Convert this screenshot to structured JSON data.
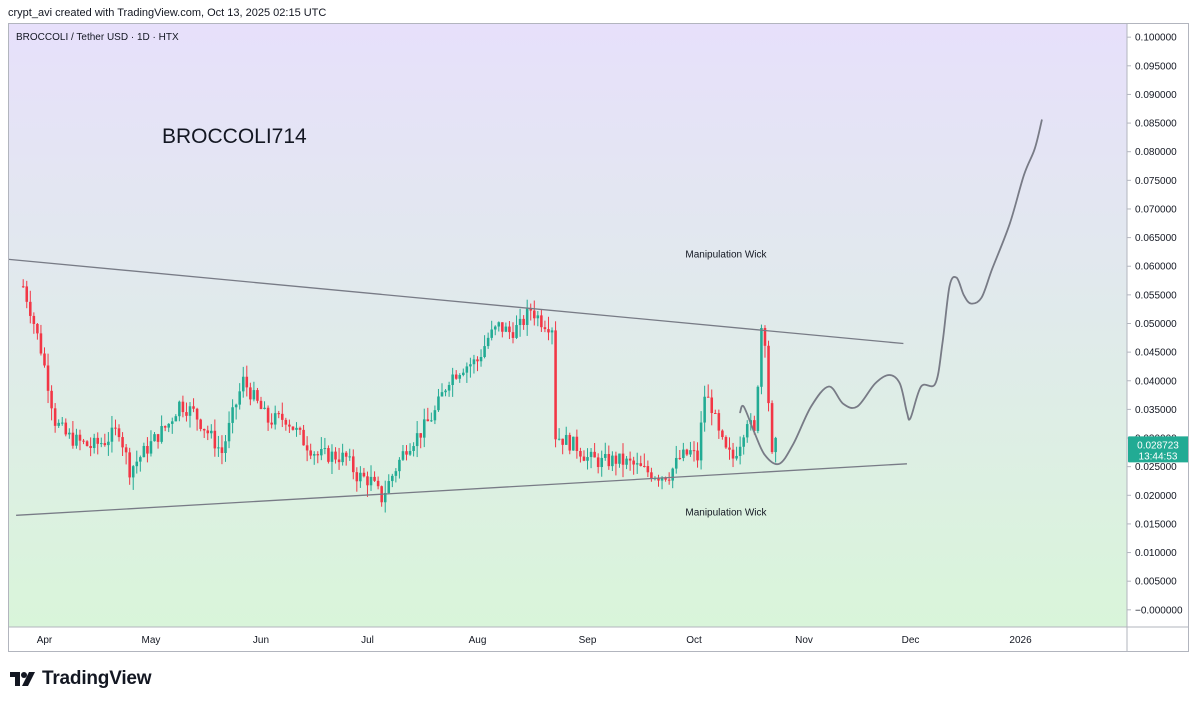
{
  "header": {
    "created_by": "crypt_avi created with TradingView.com, Oct 13, 2025 02:15 UTC"
  },
  "symbol": {
    "title": "BROCCOLI / Tether USD · 1D · HTX"
  },
  "brand": {
    "name": "TradingView",
    "logo_icon": "tradingview-logo-icon"
  },
  "colors": {
    "up": "#22ab94",
    "down": "#f23645",
    "bg_top": "#e7e0fb",
    "bg_bottom": "#d9f5da",
    "trendline": "#787b86",
    "forecast": "#787b86",
    "price_tag": "#22ab94"
  },
  "chart_data": {
    "type": "candlestick",
    "title": "BROCCOLI714",
    "x_axis": {
      "start_date": "2025-03-22",
      "end_date": "2026-01-31",
      "tick_labels": [
        "Apr",
        "May",
        "Jun",
        "Jul",
        "Aug",
        "Sep",
        "Oct",
        "Nov",
        "Dec",
        "2026"
      ],
      "tick_dates": [
        "2025-04-01",
        "2025-05-01",
        "2025-06-01",
        "2025-07-01",
        "2025-08-01",
        "2025-09-01",
        "2025-10-01",
        "2025-11-01",
        "2025-12-01",
        "2026-01-01"
      ]
    },
    "y_axis": {
      "ylim": [
        -0.003,
        0.1023
      ],
      "tick_labels": [
        "0.100000",
        "0.095000",
        "0.090000",
        "0.085000",
        "0.080000",
        "0.075000",
        "0.070000",
        "0.065000",
        "0.060000",
        "0.055000",
        "0.050000",
        "0.045000",
        "0.040000",
        "0.035000",
        "0.030000",
        "0.025000",
        "0.020000",
        "0.015000",
        "0.010000",
        "0.005000",
        "−0.000000"
      ],
      "tick_values": [
        0.1,
        0.095,
        0.09,
        0.085,
        0.08,
        0.075,
        0.07,
        0.065,
        0.06,
        0.055,
        0.05,
        0.045,
        0.04,
        0.035,
        0.03,
        0.025,
        0.02,
        0.015,
        0.01,
        0.005,
        0.0
      ]
    },
    "grid": false,
    "current_price": {
      "value": "0.028723",
      "countdown": "13:44:53",
      "price": 0.028723
    },
    "annotations": [
      {
        "text": "Manipulation Wick",
        "date": "2025-10-10",
        "price": 0.0615
      },
      {
        "text": "Manipulation Wick",
        "date": "2025-10-10",
        "price": 0.0165
      }
    ],
    "trendlines": [
      {
        "name": "upper",
        "from": [
          "2025-03-22",
          0.0612
        ],
        "to": [
          "2025-11-29",
          0.0465
        ]
      },
      {
        "name": "lower",
        "from": [
          "2025-03-24",
          0.0165
        ],
        "to": [
          "2025-11-30",
          0.0255
        ]
      }
    ],
    "forecast_path": [
      [
        "2025-10-14",
        0.0345
      ],
      [
        "2025-10-15",
        0.0355
      ],
      [
        "2025-10-18",
        0.031
      ],
      [
        "2025-10-21",
        0.027
      ],
      [
        "2025-10-25",
        0.0255
      ],
      [
        "2025-10-29",
        0.029
      ],
      [
        "2025-11-03",
        0.0355
      ],
      [
        "2025-11-08",
        0.039
      ],
      [
        "2025-11-12",
        0.036
      ],
      [
        "2025-11-16",
        0.0355
      ],
      [
        "2025-11-21",
        0.0395
      ],
      [
        "2025-11-25",
        0.041
      ],
      [
        "2025-11-28",
        0.0395
      ],
      [
        "2025-11-30",
        0.0345
      ],
      [
        "2025-12-01",
        0.0335
      ],
      [
        "2025-12-04",
        0.039
      ],
      [
        "2025-12-08",
        0.0395
      ],
      [
        "2025-12-10",
        0.0465
      ],
      [
        "2025-12-12",
        0.0565
      ],
      [
        "2025-12-14",
        0.058
      ],
      [
        "2025-12-16",
        0.055
      ],
      [
        "2025-12-18",
        0.0535
      ],
      [
        "2025-12-21",
        0.0545
      ],
      [
        "2025-12-24",
        0.0595
      ],
      [
        "2025-12-29",
        0.0675
      ],
      [
        "2026-01-02",
        0.076
      ],
      [
        "2026-01-05",
        0.0805
      ],
      [
        "2026-01-07",
        0.0855
      ]
    ],
    "series": [
      {
        "name": "BROCCOLI / Tether USD",
        "anchors": [
          [
            "2025-03-26",
            0.0565
          ],
          [
            "2025-03-28",
            0.0525
          ],
          [
            "2025-03-31",
            0.0455
          ],
          [
            "2025-04-02",
            0.0395
          ],
          [
            "2025-04-04",
            0.033
          ],
          [
            "2025-04-07",
            0.0305
          ],
          [
            "2025-04-10",
            0.0295
          ],
          [
            "2025-04-14",
            0.0285
          ],
          [
            "2025-04-18",
            0.0295
          ],
          [
            "2025-04-22",
            0.0315
          ],
          [
            "2025-04-25",
            0.0245
          ],
          [
            "2025-04-29",
            0.0275
          ],
          [
            "2025-05-03",
            0.0305
          ],
          [
            "2025-05-06",
            0.0325
          ],
          [
            "2025-05-09",
            0.036
          ],
          [
            "2025-05-13",
            0.0345
          ],
          [
            "2025-05-17",
            0.031
          ],
          [
            "2025-05-21",
            0.0275
          ],
          [
            "2025-05-24",
            0.034
          ],
          [
            "2025-05-27",
            0.04
          ],
          [
            "2025-05-31",
            0.036
          ],
          [
            "2025-06-03",
            0.033
          ],
          [
            "2025-06-08",
            0.0335
          ],
          [
            "2025-06-13",
            0.0295
          ],
          [
            "2025-06-17",
            0.027
          ],
          [
            "2025-06-21",
            0.027
          ],
          [
            "2025-06-25",
            0.0265
          ],
          [
            "2025-06-28",
            0.0235
          ],
          [
            "2025-07-02",
            0.0225
          ],
          [
            "2025-07-05",
            0.0195
          ],
          [
            "2025-07-08",
            0.0235
          ],
          [
            "2025-07-12",
            0.0285
          ],
          [
            "2025-07-16",
            0.031
          ],
          [
            "2025-07-20",
            0.0345
          ],
          [
            "2025-07-24",
            0.0405
          ],
          [
            "2025-07-28",
            0.0425
          ],
          [
            "2025-08-01",
            0.0435
          ],
          [
            "2025-08-04",
            0.0475
          ],
          [
            "2025-08-07",
            0.0495
          ],
          [
            "2025-08-10",
            0.0485
          ],
          [
            "2025-08-13",
            0.0495
          ],
          [
            "2025-08-16",
            0.0525
          ],
          [
            "2025-08-19",
            0.0505
          ],
          [
            "2025-08-22",
            0.0495
          ],
          [
            "2025-08-23",
            0.0305
          ],
          [
            "2025-08-26",
            0.0295
          ],
          [
            "2025-08-29",
            0.0285
          ],
          [
            "2025-09-01",
            0.0265
          ],
          [
            "2025-09-05",
            0.0258
          ],
          [
            "2025-09-09",
            0.0262
          ],
          [
            "2025-09-13",
            0.0255
          ],
          [
            "2025-09-17",
            0.0243
          ],
          [
            "2025-09-21",
            0.0235
          ],
          [
            "2025-09-24",
            0.0237
          ],
          [
            "2025-09-27",
            0.0265
          ],
          [
            "2025-09-30",
            0.0275
          ],
          [
            "2025-10-02",
            0.0265
          ],
          [
            "2025-10-04",
            0.0375
          ],
          [
            "2025-10-06",
            0.0355
          ],
          [
            "2025-10-08",
            0.0305
          ],
          [
            "2025-10-10",
            0.0275
          ],
          [
            "2025-10-12",
            0.0265
          ],
          [
            "2025-10-14",
            0.0295
          ],
          [
            "2025-10-16",
            0.0335
          ],
          [
            "2025-10-18",
            0.0305
          ],
          [
            "2025-10-20",
            0.0495
          ],
          [
            "2025-10-21",
            0.0475
          ],
          [
            "2025-10-22",
            0.0365
          ],
          [
            "2025-10-23",
            0.0265
          ],
          [
            "2025-10-24",
            0.0287
          ]
        ]
      }
    ]
  }
}
